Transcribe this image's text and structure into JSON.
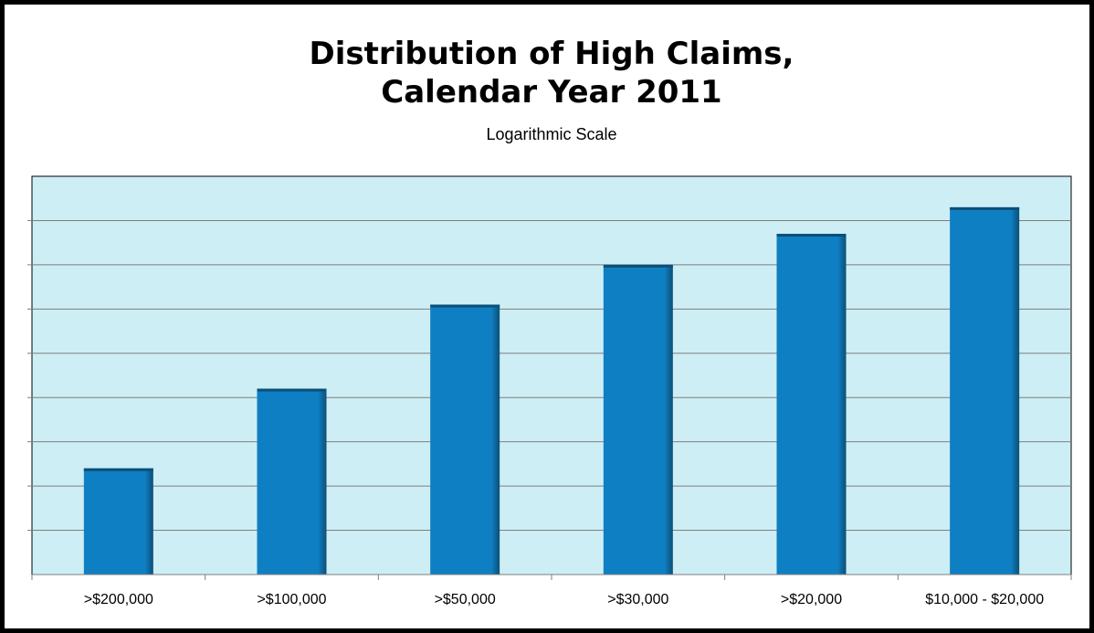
{
  "chart_data": {
    "type": "bar",
    "title_lines": [
      "Distribution of High Claims,",
      "Calendar Year 2011"
    ],
    "subtitle": "Logarithmic Scale",
    "categories": [
      ">$200,000",
      ">$100,000",
      ">$50,000",
      ">$30,000",
      ">$20,000",
      "$10,000 - $20,000"
    ],
    "values": [
      2.4,
      4.2,
      6.1,
      7.0,
      7.7,
      8.3
    ],
    "ylim": [
      0,
      9
    ],
    "y_scale": "log",
    "y_tick_labels_shown": false,
    "grid": true,
    "legend": "none",
    "colors": {
      "plot_background": "#cdeef5",
      "bar": "#0f7fc3",
      "bar_shadow": "#0b4f77",
      "gridline": "#7f7f7f"
    }
  }
}
